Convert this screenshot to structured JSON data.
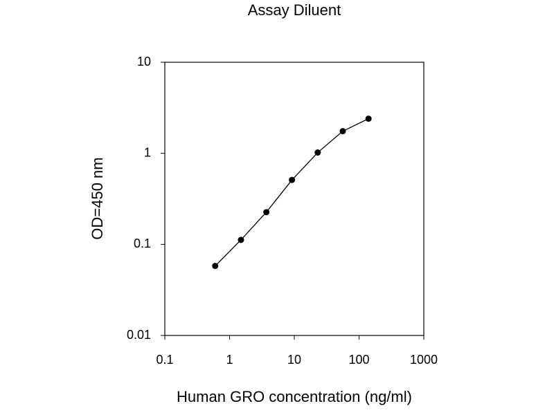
{
  "chart_data": {
    "type": "line",
    "title": "Assay Diluent",
    "x_label": "Human GRO concentration (ng/ml)",
    "y_label": "OD=450 nm",
    "x": [
      0.6,
      1.5,
      3.7,
      9.2,
      23,
      56,
      140
    ],
    "values": [
      0.058,
      0.112,
      0.226,
      0.51,
      1.02,
      1.75,
      2.4
    ],
    "color": "#000000",
    "xlim": [
      0.1,
      1000
    ],
    "xticks": [
      0.1,
      1,
      10,
      100,
      1000
    ],
    "ylim": [
      0.01,
      10
    ],
    "yticks": [
      0.01,
      0.1,
      1,
      10
    ],
    "x_log": true,
    "y_log": true,
    "grid": false
  }
}
